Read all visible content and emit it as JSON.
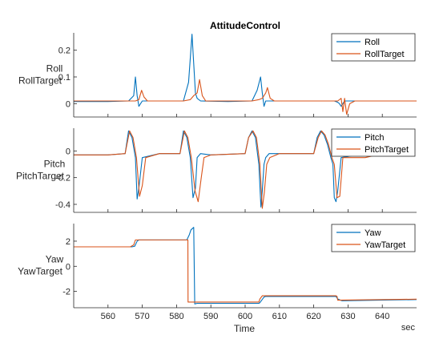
{
  "colors": {
    "measured": "#0072BD",
    "target": "#D95319",
    "axis": "#262626"
  },
  "chart_data": [
    {
      "type": "line",
      "title": "AttitudeControl",
      "ylabel": [
        "Roll",
        "RollTarget"
      ],
      "xlim": [
        550,
        650
      ],
      "ylim": [
        -0.05,
        0.265
      ],
      "yticks": [
        0,
        0.1,
        0.2
      ],
      "ytick_labels": [
        "0",
        "0.1",
        "0.2"
      ],
      "legend_position": "top-right",
      "series": [
        {
          "name": "Roll",
          "x": [
            550,
            560,
            566,
            567.5,
            568,
            568.5,
            569,
            570,
            575,
            582,
            583.5,
            584.5,
            585,
            585.5,
            586,
            587,
            595,
            602,
            603.5,
            604.5,
            605,
            605.5,
            606,
            607,
            615,
            625,
            626,
            627,
            627.5,
            628,
            628.5,
            629,
            630,
            640,
            650
          ],
          "y": [
            0.008,
            0.008,
            0.01,
            0.03,
            0.1,
            0.03,
            -0.01,
            0.01,
            0.01,
            0.01,
            0.08,
            0.26,
            0.15,
            0.04,
            0.02,
            0.01,
            0.008,
            0.01,
            0.05,
            0.1,
            0.04,
            -0.01,
            0.01,
            0.01,
            0.01,
            0.01,
            0.01,
            0.005,
            0.0,
            -0.01,
            0.0,
            0.01,
            0.01,
            0.01,
            0.01
          ]
        },
        {
          "name": "RollTarget",
          "x": [
            550,
            560,
            566,
            568,
            569,
            569.8,
            570.5,
            571.5,
            575,
            582,
            584,
            585,
            586,
            586.7,
            587.5,
            588.5,
            595,
            602,
            604,
            605,
            606,
            606.5,
            607.3,
            608.5,
            615,
            625,
            627,
            628,
            628.5,
            629,
            629.6,
            630.5,
            632,
            640,
            650
          ],
          "y": [
            0.01,
            0.01,
            0.01,
            0.01,
            0.015,
            0.05,
            0.025,
            0.01,
            0.01,
            0.01,
            0.015,
            0.03,
            0.04,
            0.09,
            0.03,
            0.01,
            0.01,
            0.01,
            0.015,
            0.02,
            0.04,
            0.06,
            0.02,
            0.01,
            0.01,
            0.01,
            0.01,
            0.02,
            -0.03,
            0.02,
            -0.04,
            0.0,
            0.01,
            0.01,
            0.01
          ]
        }
      ]
    },
    {
      "type": "line",
      "title": "",
      "ylabel": [
        "Pitch",
        "PitchTarget"
      ],
      "xlim": [
        550,
        650
      ],
      "ylim": [
        -0.46,
        0.17
      ],
      "yticks": [
        -0.4,
        -0.2,
        0
      ],
      "ytick_labels": [
        "-0.4",
        "-0.2",
        "0"
      ],
      "legend_position": "top-right",
      "series": [
        {
          "name": "Pitch",
          "x": [
            550,
            560,
            565,
            566,
            567,
            568,
            568.5,
            569,
            570,
            575,
            581,
            582,
            583,
            584,
            584.8,
            585.5,
            586,
            587,
            590,
            600,
            601,
            602,
            603,
            604,
            604.6,
            605,
            605.5,
            606,
            607,
            610,
            620,
            621,
            622,
            623,
            624,
            625,
            625.6,
            626,
            626.5,
            627,
            628,
            635,
            645
          ],
          "y": [
            -0.03,
            -0.03,
            -0.02,
            0.15,
            0.1,
            -0.05,
            -0.36,
            -0.28,
            -0.05,
            -0.02,
            -0.02,
            0.15,
            0.1,
            -0.05,
            -0.35,
            -0.28,
            -0.05,
            -0.02,
            -0.03,
            -0.02,
            0.1,
            0.15,
            0.1,
            -0.1,
            -0.42,
            -0.3,
            -0.1,
            -0.05,
            -0.02,
            -0.02,
            -0.02,
            0.1,
            0.15,
            0.12,
            0.05,
            -0.05,
            -0.1,
            -0.35,
            -0.38,
            -0.3,
            -0.05,
            -0.02,
            -0.02
          ]
        },
        {
          "name": "PitchTarget",
          "x": [
            550,
            560,
            565,
            566.3,
            567.3,
            568.3,
            569.2,
            570,
            571,
            575,
            581,
            582.3,
            583.3,
            584.3,
            585.4,
            586.3,
            587.2,
            588,
            590,
            600,
            601,
            602.3,
            603.3,
            604.3,
            605,
            605.6,
            606.3,
            607.2,
            610,
            620,
            621.3,
            622.3,
            623.3,
            624.3,
            625.3,
            626,
            626.8,
            627.6,
            628.5,
            635,
            640
          ],
          "y": [
            -0.03,
            -0.03,
            -0.02,
            0.15,
            0.1,
            -0.05,
            -0.34,
            -0.26,
            -0.05,
            -0.02,
            -0.02,
            0.15,
            0.1,
            -0.05,
            -0.3,
            -0.38,
            -0.2,
            -0.05,
            -0.03,
            -0.02,
            0.1,
            0.15,
            0.1,
            -0.1,
            -0.43,
            -0.31,
            -0.1,
            -0.05,
            -0.02,
            -0.02,
            0.1,
            0.15,
            0.12,
            0.05,
            -0.05,
            -0.1,
            -0.35,
            -0.34,
            -0.05,
            -0.05,
            -0.02
          ]
        }
      ]
    },
    {
      "type": "line",
      "title": "",
      "ylabel": [
        "Yaw",
        "YawTarget"
      ],
      "xlim": [
        550,
        650
      ],
      "ylim": [
        -3.3,
        3.4
      ],
      "yticks": [
        -2,
        0,
        2
      ],
      "ytick_labels": [
        "-2",
        "0",
        "2"
      ],
      "legend_position": "top-right",
      "xticks": [
        560,
        570,
        580,
        590,
        600,
        610,
        620,
        630,
        640
      ],
      "xtick_labels": [
        "560",
        "570",
        "580",
        "590",
        "600",
        "610",
        "620",
        "630",
        "640"
      ],
      "xlabel": "Time",
      "xunit": "sec",
      "series": [
        {
          "name": "Yaw",
          "x": [
            550,
            567,
            567.8,
            568.5,
            569,
            583,
            583.7,
            584.2,
            585,
            585.3,
            586,
            604,
            604.3,
            605.5,
            606,
            626.5,
            627,
            627.8,
            628.3,
            650
          ],
          "y": [
            1.55,
            1.55,
            1.6,
            2.0,
            2.1,
            2.1,
            2.5,
            2.9,
            3.1,
            -3.0,
            -2.95,
            -2.95,
            -2.9,
            -2.45,
            -2.4,
            -2.4,
            -2.6,
            -2.7,
            -2.75,
            -2.65
          ]
        },
        {
          "name": "YawTarget",
          "x": [
            550,
            566.5,
            567.5,
            568,
            583,
            583.3,
            583.35,
            604,
            604.3,
            605,
            626.5,
            626.8,
            627,
            650
          ],
          "y": [
            1.55,
            1.55,
            1.7,
            2.1,
            2.1,
            2.1,
            -2.85,
            -2.85,
            -2.6,
            -2.35,
            -2.35,
            -2.4,
            -2.7,
            -2.62
          ]
        }
      ]
    }
  ]
}
